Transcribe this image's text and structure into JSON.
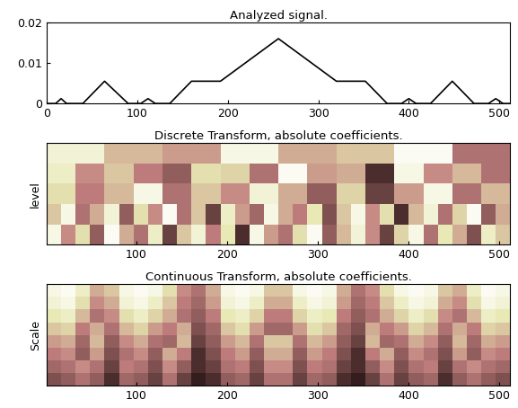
{
  "chart_data": [
    {
      "type": "line",
      "title": "Analyzed signal.",
      "color": "#000000",
      "x": [
        0,
        10,
        16,
        22,
        40,
        64,
        90,
        104,
        112,
        120,
        136,
        160,
        192,
        256,
        320,
        352,
        376,
        392,
        400,
        408,
        424,
        448,
        472,
        488,
        496,
        504,
        512
      ],
      "values": [
        0,
        0,
        0.0012,
        0,
        0,
        0.0055,
        0,
        0,
        0.0012,
        0,
        0,
        0.0055,
        0.0055,
        0.016,
        0.0055,
        0.0055,
        0,
        0,
        0.0012,
        0,
        0,
        0.0055,
        0,
        0,
        0.0012,
        0,
        0
      ],
      "xlim": [
        0,
        512
      ],
      "ylim": [
        0,
        0.02
      ],
      "xticks": [
        0,
        100,
        200,
        300,
        400,
        500
      ],
      "yticks": [
        0,
        0.01,
        0.02
      ]
    },
    {
      "type": "heatmap",
      "title": "Discrete Transform, absolute coefficients.",
      "y_label": "level",
      "xlim": [
        1,
        512
      ],
      "xticks": [
        100,
        200,
        300,
        400,
        500
      ],
      "tick_labels": "x",
      "clim": [
        0,
        1
      ],
      "cells": [
        [
          0.85,
          0.55,
          0.45,
          0.9,
          0.5,
          0.6,
          0.95,
          0.3
        ],
        [
          0.8,
          0.4,
          0.6,
          0.35,
          0.2,
          0.7,
          0.65,
          0.3,
          0.95,
          0.45,
          0.5,
          0.05,
          0.9,
          0.4,
          0.55,
          0.3
        ],
        [
          0.7,
          0.35,
          0.55,
          0.9,
          0.3,
          0.6,
          0.4,
          0.85,
          0.5,
          0.2,
          0.65,
          0.1,
          0.45,
          0.9,
          0.3,
          0.55
        ],
        [
          0.6,
          0.9,
          0.3,
          0.5,
          0.85,
          0.2,
          0.7,
          0.4,
          0.95,
          0.3,
          0.6,
          0.1,
          0.8,
          0.45,
          0.25,
          0.9,
          0.5,
          0.35,
          0.75,
          0.15,
          0.6,
          0.9,
          0.4,
          0.7,
          0.05,
          0.55,
          0.85,
          0.3,
          0.65,
          0.95,
          0.2,
          0.5
        ],
        [
          0.9,
          0.4,
          0.7,
          0.2,
          0.95,
          0.5,
          0.3,
          0.8,
          0.1,
          0.6,
          0.85,
          0.35,
          0.75,
          0.05,
          0.9,
          0.45,
          0.3,
          0.7,
          0.95,
          0.2,
          0.55,
          0.85,
          0.4,
          0.1,
          0.65,
          0.9,
          0.3,
          0.75,
          0.5,
          0.15,
          0.8,
          0.6
        ]
      ]
    },
    {
      "type": "heatmap",
      "title": "Continuous Transform, absolute coefficients.",
      "y_label": "Scale",
      "xlim": [
        1,
        512
      ],
      "xticks": [
        100,
        200,
        300,
        400,
        500
      ],
      "tick_labels": "x",
      "clim": [
        0,
        1
      ],
      "cells": [
        [
          0.9,
          0.95,
          0.8,
          0.5,
          0.6,
          0.9,
          0.95,
          0.9,
          0.7,
          0.4,
          0.3,
          0.5,
          0.9,
          0.95,
          0.9,
          0.6,
          0.6,
          0.9,
          0.95,
          0.9,
          0.5,
          0.3,
          0.4,
          0.7,
          0.9,
          0.95,
          0.9,
          0.6,
          0.5,
          0.8,
          0.95,
          0.9
        ],
        [
          0.85,
          0.9,
          0.7,
          0.4,
          0.5,
          0.85,
          0.9,
          0.8,
          0.6,
          0.35,
          0.25,
          0.45,
          0.85,
          0.9,
          0.8,
          0.5,
          0.5,
          0.8,
          0.9,
          0.85,
          0.45,
          0.25,
          0.35,
          0.6,
          0.8,
          0.9,
          0.85,
          0.5,
          0.4,
          0.7,
          0.9,
          0.85
        ],
        [
          0.75,
          0.8,
          0.55,
          0.3,
          0.4,
          0.7,
          0.8,
          0.65,
          0.5,
          0.3,
          0.2,
          0.35,
          0.75,
          0.8,
          0.65,
          0.35,
          0.35,
          0.65,
          0.8,
          0.75,
          0.35,
          0.2,
          0.3,
          0.5,
          0.65,
          0.8,
          0.7,
          0.4,
          0.3,
          0.55,
          0.8,
          0.75
        ],
        [
          0.6,
          0.65,
          0.35,
          0.5,
          0.3,
          0.55,
          0.65,
          0.45,
          0.35,
          0.5,
          0.15,
          0.25,
          0.6,
          0.7,
          0.45,
          0.25,
          0.25,
          0.45,
          0.7,
          0.6,
          0.25,
          0.15,
          0.5,
          0.35,
          0.45,
          0.65,
          0.55,
          0.3,
          0.5,
          0.35,
          0.65,
          0.6
        ],
        [
          0.45,
          0.5,
          0.25,
          0.55,
          0.2,
          0.4,
          0.5,
          0.3,
          0.25,
          0.55,
          0.1,
          0.2,
          0.45,
          0.55,
          0.3,
          0.6,
          0.6,
          0.3,
          0.55,
          0.45,
          0.2,
          0.1,
          0.55,
          0.25,
          0.3,
          0.5,
          0.4,
          0.2,
          0.55,
          0.25,
          0.5,
          0.45
        ],
        [
          0.35,
          0.4,
          0.2,
          0.45,
          0.15,
          0.3,
          0.4,
          0.2,
          0.5,
          0.35,
          0.05,
          0.15,
          0.35,
          0.45,
          0.2,
          0.5,
          0.5,
          0.2,
          0.45,
          0.35,
          0.15,
          0.05,
          0.35,
          0.5,
          0.2,
          0.4,
          0.3,
          0.15,
          0.45,
          0.2,
          0.4,
          0.35
        ],
        [
          0.25,
          0.3,
          0.4,
          0.3,
          0.1,
          0.35,
          0.3,
          0.15,
          0.4,
          0.2,
          0.05,
          0.1,
          0.3,
          0.35,
          0.15,
          0.4,
          0.4,
          0.15,
          0.35,
          0.3,
          0.1,
          0.05,
          0.2,
          0.4,
          0.15,
          0.3,
          0.35,
          0.1,
          0.3,
          0.4,
          0.3,
          0.25
        ],
        [
          0.15,
          0.2,
          0.3,
          0.2,
          0.05,
          0.25,
          0.2,
          0.1,
          0.3,
          0.1,
          0.02,
          0.05,
          0.2,
          0.25,
          0.1,
          0.3,
          0.3,
          0.1,
          0.25,
          0.2,
          0.05,
          0.02,
          0.1,
          0.3,
          0.1,
          0.2,
          0.25,
          0.05,
          0.2,
          0.3,
          0.2,
          0.15
        ]
      ]
    }
  ]
}
